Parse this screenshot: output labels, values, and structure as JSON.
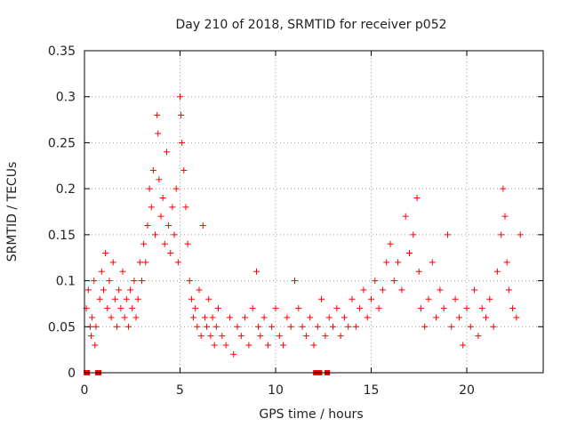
{
  "chart_data": {
    "type": "scatter",
    "title": "Day 210 of 2018, SRMTID for receiver p052",
    "xlabel": "GPS time / hours",
    "ylabel": "SRMTID / TECUs",
    "xlim": [
      0,
      24
    ],
    "ylim": [
      0,
      0.35
    ],
    "xticks": [
      0,
      5,
      10,
      15,
      20
    ],
    "xtick_labels": [
      "0",
      "5",
      "10",
      "15",
      "20"
    ],
    "yticks": [
      0,
      0.05,
      0.1,
      0.15,
      0.2,
      0.25,
      0.3,
      0.35
    ],
    "ytick_labels": [
      "0",
      "0.05",
      "0.1",
      "0.15",
      "0.2",
      "0.25",
      "0.3",
      "0.35"
    ],
    "grid": true,
    "marker": "plus",
    "color": "#ff0000",
    "series": [
      {
        "name": "SRMTID",
        "points": [
          [
            0.1,
            0.07
          ],
          [
            0.2,
            0.09
          ],
          [
            0.3,
            0.05
          ],
          [
            0.35,
            0.04
          ],
          [
            0.4,
            0.06
          ],
          [
            0.5,
            0.1
          ],
          [
            0.55,
            0.03
          ],
          [
            0.6,
            0.05
          ],
          [
            0.8,
            0.08
          ],
          [
            0.9,
            0.11
          ],
          [
            1.0,
            0.09
          ],
          [
            1.1,
            0.13
          ],
          [
            1.2,
            0.07
          ],
          [
            1.3,
            0.1
          ],
          [
            1.4,
            0.06
          ],
          [
            1.5,
            0.12
          ],
          [
            1.6,
            0.08
          ],
          [
            1.7,
            0.05
          ],
          [
            1.8,
            0.09
          ],
          [
            1.9,
            0.07
          ],
          [
            2.0,
            0.11
          ],
          [
            2.1,
            0.06
          ],
          [
            2.2,
            0.08
          ],
          [
            2.3,
            0.05
          ],
          [
            2.4,
            0.09
          ],
          [
            2.5,
            0.07
          ],
          [
            2.6,
            0.1
          ],
          [
            2.7,
            0.06
          ],
          [
            2.8,
            0.08
          ],
          [
            2.9,
            0.12
          ],
          [
            3.0,
            0.1
          ],
          [
            3.1,
            0.14
          ],
          [
            3.2,
            0.12
          ],
          [
            3.3,
            0.16
          ],
          [
            3.4,
            0.2
          ],
          [
            3.5,
            0.18
          ],
          [
            3.6,
            0.22
          ],
          [
            3.7,
            0.15
          ],
          [
            3.8,
            0.28
          ],
          [
            3.85,
            0.26
          ],
          [
            3.9,
            0.21
          ],
          [
            4.0,
            0.17
          ],
          [
            4.1,
            0.19
          ],
          [
            4.2,
            0.14
          ],
          [
            4.3,
            0.24
          ],
          [
            4.4,
            0.16
          ],
          [
            4.5,
            0.13
          ],
          [
            4.6,
            0.18
          ],
          [
            4.7,
            0.15
          ],
          [
            4.8,
            0.2
          ],
          [
            4.9,
            0.12
          ],
          [
            5.0,
            0.3
          ],
          [
            5.05,
            0.28
          ],
          [
            5.1,
            0.25
          ],
          [
            5.2,
            0.22
          ],
          [
            5.3,
            0.18
          ],
          [
            5.4,
            0.14
          ],
          [
            5.5,
            0.1
          ],
          [
            5.6,
            0.08
          ],
          [
            5.7,
            0.06
          ],
          [
            5.8,
            0.07
          ],
          [
            5.9,
            0.05
          ],
          [
            6.0,
            0.09
          ],
          [
            6.1,
            0.04
          ],
          [
            6.2,
            0.16
          ],
          [
            6.3,
            0.06
          ],
          [
            6.4,
            0.05
          ],
          [
            6.5,
            0.08
          ],
          [
            6.6,
            0.04
          ],
          [
            6.7,
            0.06
          ],
          [
            6.8,
            0.03
          ],
          [
            6.9,
            0.05
          ],
          [
            7.0,
            0.07
          ],
          [
            7.2,
            0.04
          ],
          [
            7.4,
            0.03
          ],
          [
            7.6,
            0.06
          ],
          [
            7.8,
            0.02
          ],
          [
            8.0,
            0.05
          ],
          [
            8.2,
            0.04
          ],
          [
            8.4,
            0.06
          ],
          [
            8.6,
            0.03
          ],
          [
            8.8,
            0.07
          ],
          [
            9.0,
            0.11
          ],
          [
            9.1,
            0.05
          ],
          [
            9.2,
            0.04
          ],
          [
            9.4,
            0.06
          ],
          [
            9.6,
            0.03
          ],
          [
            9.8,
            0.05
          ],
          [
            10.0,
            0.07
          ],
          [
            10.2,
            0.04
          ],
          [
            10.4,
            0.03
          ],
          [
            10.6,
            0.06
          ],
          [
            10.8,
            0.05
          ],
          [
            11.0,
            0.1
          ],
          [
            11.2,
            0.07
          ],
          [
            11.4,
            0.05
          ],
          [
            11.6,
            0.04
          ],
          [
            11.8,
            0.06
          ],
          [
            12.0,
            0.03
          ],
          [
            12.2,
            0.05
          ],
          [
            12.4,
            0.08
          ],
          [
            12.6,
            0.04
          ],
          [
            12.8,
            0.06
          ],
          [
            13.0,
            0.05
          ],
          [
            13.2,
            0.07
          ],
          [
            13.4,
            0.04
          ],
          [
            13.6,
            0.06
          ],
          [
            13.8,
            0.05
          ],
          [
            14.0,
            0.08
          ],
          [
            14.2,
            0.05
          ],
          [
            14.4,
            0.07
          ],
          [
            14.6,
            0.09
          ],
          [
            14.8,
            0.06
          ],
          [
            15.0,
            0.08
          ],
          [
            15.2,
            0.1
          ],
          [
            15.4,
            0.07
          ],
          [
            15.6,
            0.09
          ],
          [
            15.8,
            0.12
          ],
          [
            16.0,
            0.14
          ],
          [
            16.2,
            0.1
          ],
          [
            16.4,
            0.12
          ],
          [
            16.6,
            0.09
          ],
          [
            16.8,
            0.17
          ],
          [
            17.0,
            0.13
          ],
          [
            17.2,
            0.15
          ],
          [
            17.4,
            0.19
          ],
          [
            17.5,
            0.11
          ],
          [
            17.6,
            0.07
          ],
          [
            17.8,
            0.05
          ],
          [
            18.0,
            0.08
          ],
          [
            18.2,
            0.12
          ],
          [
            18.4,
            0.06
          ],
          [
            18.6,
            0.09
          ],
          [
            18.8,
            0.07
          ],
          [
            19.0,
            0.15
          ],
          [
            19.2,
            0.05
          ],
          [
            19.4,
            0.08
          ],
          [
            19.6,
            0.06
          ],
          [
            19.8,
            0.03
          ],
          [
            20.0,
            0.07
          ],
          [
            20.2,
            0.05
          ],
          [
            20.4,
            0.09
          ],
          [
            20.6,
            0.04
          ],
          [
            20.8,
            0.07
          ],
          [
            21.0,
            0.06
          ],
          [
            21.2,
            0.08
          ],
          [
            21.4,
            0.05
          ],
          [
            21.6,
            0.11
          ],
          [
            21.8,
            0.15
          ],
          [
            21.9,
            0.2
          ],
          [
            22.0,
            0.17
          ],
          [
            22.1,
            0.12
          ],
          [
            22.2,
            0.09
          ],
          [
            22.4,
            0.07
          ],
          [
            22.6,
            0.06
          ],
          [
            22.8,
            0.15
          ]
        ]
      }
    ],
    "zero_points_x": [
      0.1,
      0.15,
      0.7,
      0.75,
      12.1,
      12.2,
      12.3,
      12.7
    ]
  }
}
